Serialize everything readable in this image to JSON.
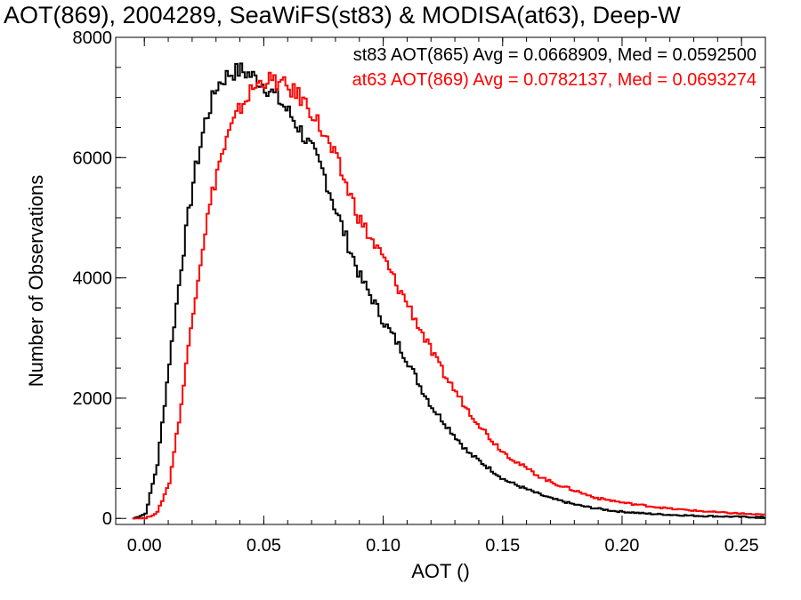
{
  "page": {
    "title": "AOT(869), 2004289, SeaWiFS(st83) & MODISA(at63), Deep-W"
  },
  "chart_data": {
    "type": "line",
    "xlabel": "AOT ()",
    "ylabel": "Number of Observations",
    "xlim": [
      -0.012,
      0.26
    ],
    "ylim": [
      -100,
      8000
    ],
    "xticks": [
      0.0,
      0.05,
      0.1,
      0.15,
      0.2,
      0.25
    ],
    "xtick_labels": [
      "0.00",
      "0.05",
      "0.10",
      "0.15",
      "0.20",
      "0.25"
    ],
    "yticks": [
      0,
      2000,
      4000,
      6000,
      8000
    ],
    "ytick_labels": [
      "0",
      "2000",
      "4000",
      "6000",
      "8000"
    ],
    "grid": false,
    "legend_position": "top-right",
    "series": [
      {
        "name": "st83 AOT(865) Avg = 0.0668909, Med = 0.0592500",
        "color": "#000000",
        "x": [
          -0.005,
          0.0,
          0.005,
          0.01,
          0.015,
          0.02,
          0.025,
          0.03,
          0.035,
          0.04,
          0.045,
          0.05,
          0.055,
          0.06,
          0.065,
          0.07,
          0.075,
          0.08,
          0.085,
          0.09,
          0.095,
          0.1,
          0.105,
          0.11,
          0.115,
          0.12,
          0.125,
          0.13,
          0.135,
          0.14,
          0.145,
          0.15,
          0.155,
          0.16,
          0.165,
          0.17,
          0.175,
          0.18,
          0.185,
          0.19,
          0.195,
          0.2,
          0.21,
          0.22,
          0.23,
          0.24,
          0.25,
          0.26
        ],
        "y": [
          0,
          80,
          900,
          2600,
          4200,
          5600,
          6600,
          7200,
          7400,
          7450,
          7350,
          7200,
          7000,
          6750,
          6450,
          6100,
          5700,
          5100,
          4550,
          4000,
          3650,
          3250,
          2950,
          2600,
          2200,
          1850,
          1600,
          1350,
          1100,
          950,
          800,
          650,
          560,
          480,
          400,
          330,
          280,
          230,
          190,
          160,
          130,
          110,
          80,
          60,
          45,
          35,
          25,
          20
        ]
      },
      {
        "name": "at63 AOT(869) Avg = 0.0782137, Med = 0.0693274",
        "color": "#ff0000",
        "x": [
          -0.005,
          0.0,
          0.005,
          0.01,
          0.015,
          0.02,
          0.025,
          0.03,
          0.035,
          0.04,
          0.045,
          0.05,
          0.055,
          0.06,
          0.065,
          0.07,
          0.075,
          0.08,
          0.085,
          0.09,
          0.095,
          0.1,
          0.105,
          0.11,
          0.115,
          0.12,
          0.125,
          0.13,
          0.135,
          0.14,
          0.145,
          0.15,
          0.155,
          0.16,
          0.165,
          0.17,
          0.175,
          0.18,
          0.185,
          0.19,
          0.195,
          0.2,
          0.21,
          0.22,
          0.23,
          0.24,
          0.25,
          0.26
        ],
        "y": [
          0,
          0,
          100,
          600,
          1900,
          3500,
          4800,
          5800,
          6400,
          6850,
          7150,
          7300,
          7250,
          7150,
          7000,
          6750,
          6350,
          5950,
          5450,
          4950,
          4600,
          4300,
          3900,
          3550,
          3150,
          2750,
          2400,
          2100,
          1800,
          1550,
          1300,
          1100,
          950,
          820,
          700,
          600,
          530,
          460,
          390,
          330,
          300,
          260,
          210,
          160,
          130,
          100,
          80,
          55
        ]
      }
    ]
  }
}
